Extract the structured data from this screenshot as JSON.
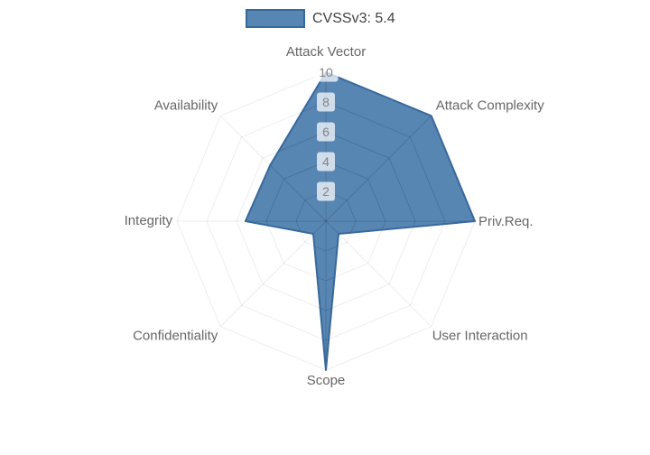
{
  "legend": {
    "label": "CVSSv3: 5.4",
    "swatch_fill": "#5886b3",
    "swatch_border": "#38699c"
  },
  "chart_data": {
    "type": "radar",
    "title": "CVSSv3: 5.4",
    "categories": [
      "Attack Vector",
      "Attack Complexity",
      "Priv.Req.",
      "User Interaction",
      "Scope",
      "Confidentiality",
      "Integrity",
      "Availability"
    ],
    "series": [
      {
        "name": "CVSSv3: 5.4",
        "values": [
          10,
          10,
          10,
          1.2,
          10,
          1.2,
          5.4,
          5.3
        ]
      }
    ],
    "ticks": [
      2,
      4,
      6,
      8,
      10
    ],
    "rmin": 0,
    "rmax": 10,
    "grid": true,
    "legend_position": "top",
    "colors": {
      "fill": "#5886b3",
      "stroke": "#38699c",
      "grid_faint": "rgba(0,0,0,0.07)",
      "grid_inner": "rgba(12,32,64,0.18)",
      "tick_text": "#848484",
      "tick_bg": "rgba(255,255,255,0.72)",
      "axis_label": "#666666"
    }
  }
}
